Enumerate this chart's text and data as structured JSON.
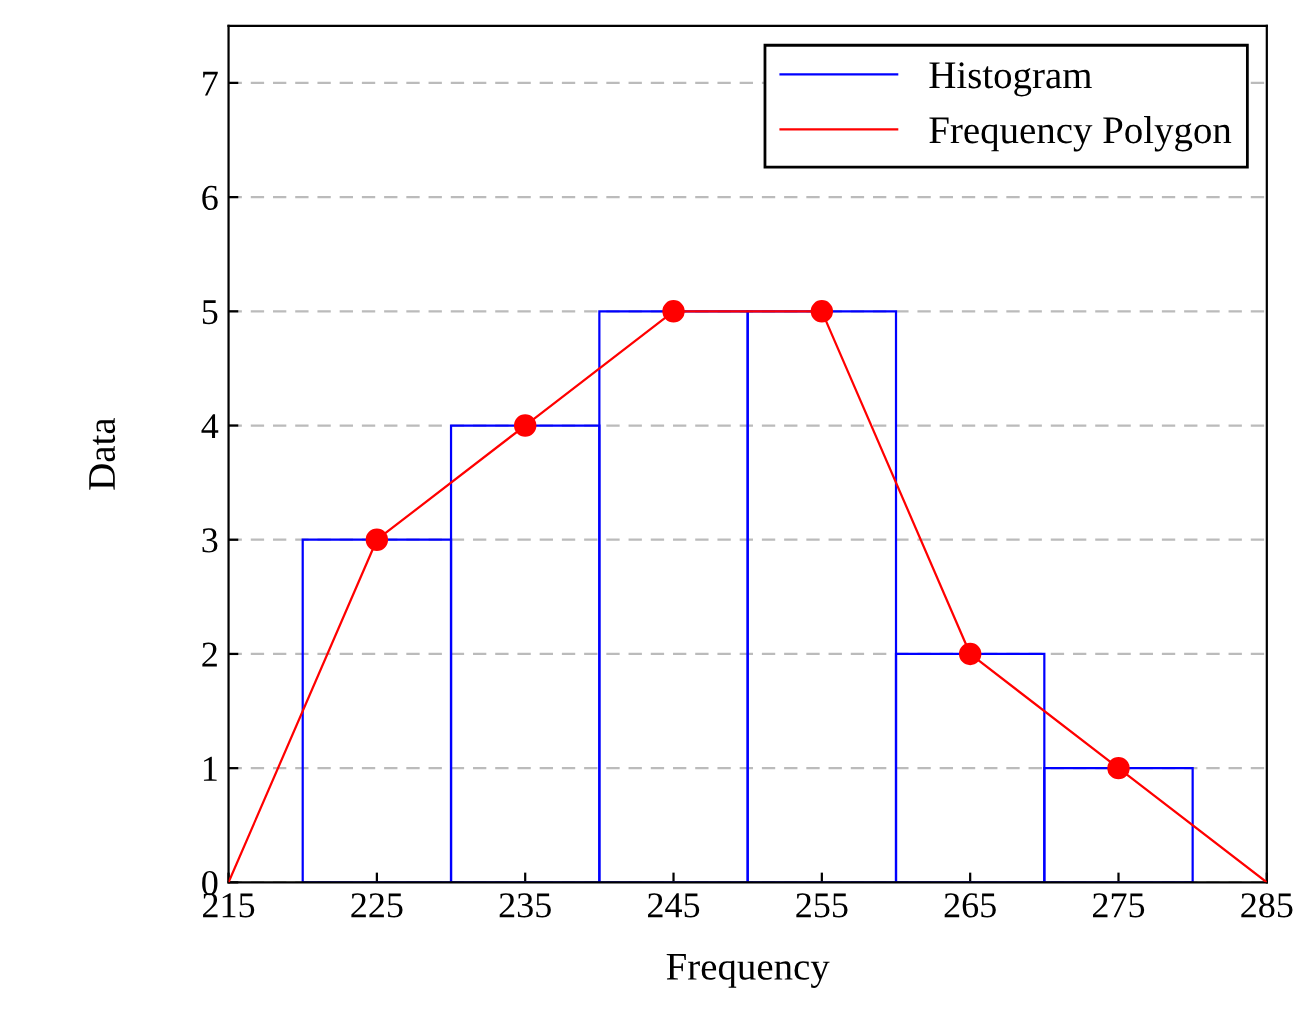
{
  "chart_data": {
    "type": "histogram",
    "xlabel": "Frequency",
    "ylabel": "Data",
    "bins": [
      220,
      230,
      240,
      250,
      260,
      270,
      280
    ],
    "series": [
      {
        "name": "Histogram",
        "color": "#0000ff",
        "values": [
          3,
          4,
          5,
          5,
          2,
          1
        ]
      },
      {
        "name": "Frequency Polygon",
        "type": "line",
        "color": "#ff0000",
        "marker": "none",
        "x": [
          215,
          225,
          235,
          245,
          255,
          265,
          275,
          285
        ],
        "values": [
          0,
          3,
          4,
          5,
          5,
          2,
          1,
          0
        ]
      },
      {
        "type": "scatter",
        "color": "#ff0000",
        "marker": "circle",
        "x": [
          225,
          235,
          245,
          255,
          265,
          275
        ],
        "values": [
          3,
          4,
          5,
          5,
          2,
          1
        ]
      }
    ],
    "xlim": [
      215,
      285
    ],
    "xticks": [
      215,
      225,
      235,
      245,
      255,
      265,
      275,
      285
    ],
    "ylim": [
      0,
      7.5
    ],
    "yticks": [
      0,
      1,
      2,
      3,
      4,
      5,
      6,
      7
    ],
    "grid": "y",
    "legend": "top right"
  }
}
